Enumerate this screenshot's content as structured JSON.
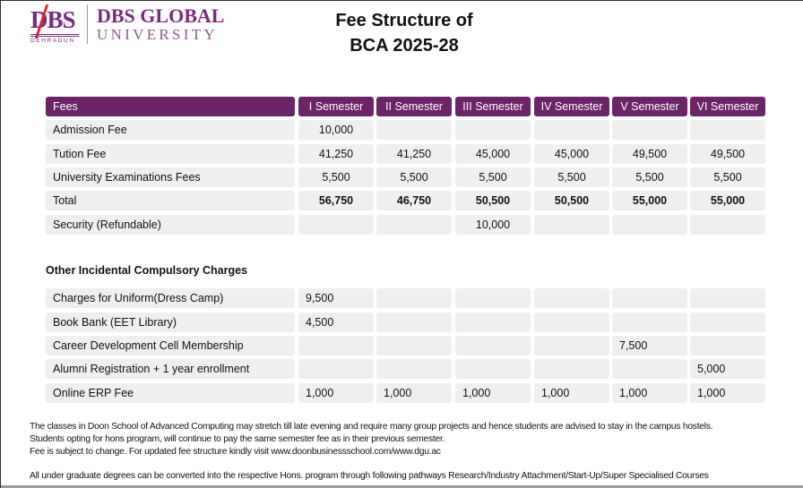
{
  "logo": {
    "mark": "DBS",
    "city": "DEHRADUN",
    "name_line1": "DBS GLOBAL",
    "name_line2": "UNIVERSITY"
  },
  "title": {
    "line1": "Fee Structure of",
    "line2": "BCA 2025-28"
  },
  "colors": {
    "header": "#6b2369",
    "cell": "#efefef",
    "brand": "#7a2a7e",
    "slash": "#e0262b"
  },
  "fees_table": {
    "headers": [
      "Fees",
      "I Semester",
      "II Semester",
      "III Semester",
      "IV Semester",
      "V Semester",
      "VI Semester"
    ],
    "rows": [
      {
        "label": "Admission Fee",
        "values": [
          "10,000",
          "",
          "",
          "",
          "",
          ""
        ]
      },
      {
        "label": "Tution Fee",
        "values": [
          "41,250",
          "41,250",
          "45,000",
          "45,000",
          "49,500",
          "49,500"
        ]
      },
      {
        "label": "University Examinations Fees",
        "values": [
          "5,500",
          "5,500",
          "5,500",
          "5,500",
          "5,500",
          "5,500"
        ]
      },
      {
        "label": "Total",
        "values": [
          "56,750",
          "46,750",
          "50,500",
          "50,500",
          "55,000",
          "55,000"
        ],
        "bold": true
      },
      {
        "label": "Security (Refundable)",
        "values": [
          "",
          "",
          "10,000",
          "",
          "",
          ""
        ]
      }
    ]
  },
  "other_charges": {
    "heading": "Other Incidental Compulsory Charges",
    "rows": [
      {
        "label": "Charges for Uniform(Dress Camp)",
        "values": [
          "9,500",
          "",
          "",
          "",
          "",
          ""
        ]
      },
      {
        "label": "Book Bank (EET Library)",
        "values": [
          "4,500",
          "",
          "",
          "",
          "",
          ""
        ]
      },
      {
        "label": "Career Development Cell Membership",
        "values": [
          "",
          "",
          "",
          "",
          "7,500",
          ""
        ]
      },
      {
        "label": "Alumni Registration + 1 year enrollment",
        "values": [
          "",
          "",
          "",
          "",
          "",
          "5,000"
        ]
      },
      {
        "label": "Online ERP Fee",
        "values": [
          "1,000",
          "1,000",
          "1,000",
          "1,000",
          "1,000",
          "1,000"
        ]
      }
    ]
  },
  "notes": [
    "The classes in Doon School of Advanced Computing may stretch till late evening and require many group projects and hence students are advised to stay in the campus hostels.",
    "Students opting for hons program, will continue to pay the same semester fee as in their previous semester.",
    "Fee is subject to change. For updated fee structure kindly visit www.doonbusinessschool.com/www.dgu.ac"
  ],
  "footer_note": "All under graduate degrees can be converted into the respective Hons. program through following pathways Research/Industry Attachment/Start-Up/Super Specialised Courses"
}
